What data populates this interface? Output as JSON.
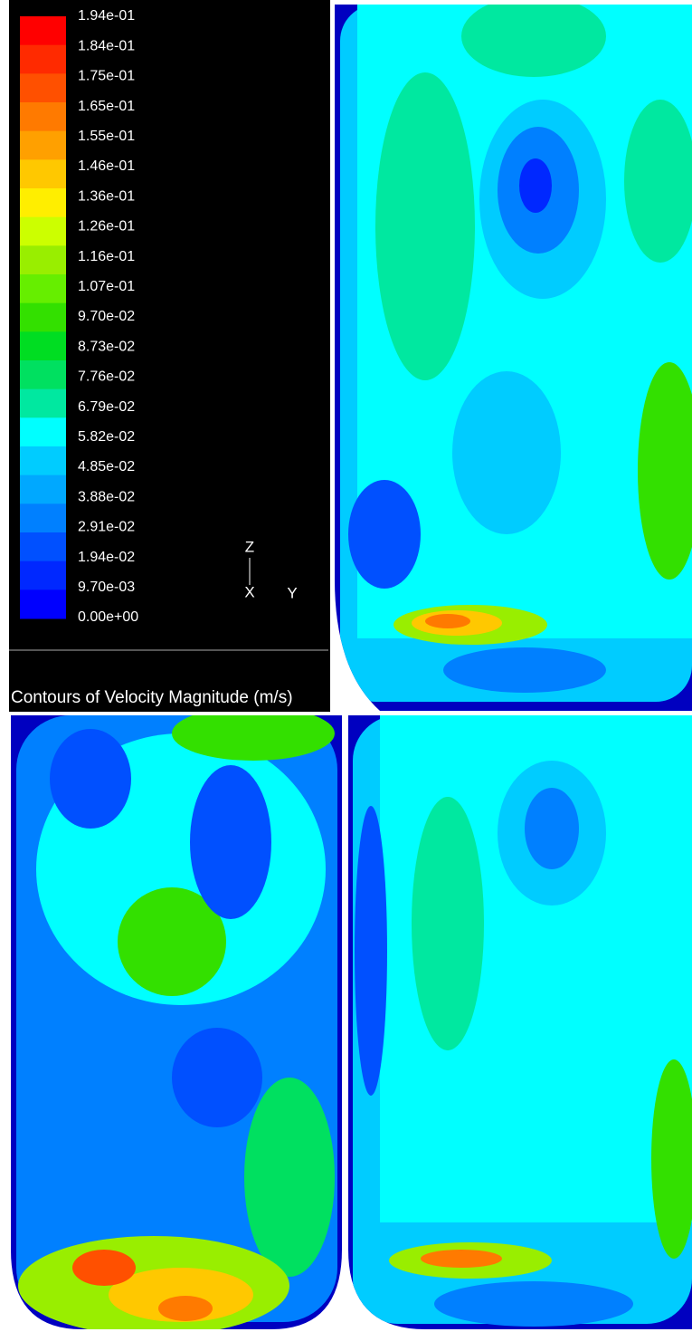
{
  "legend": {
    "levels": [
      "1.94e-01",
      "1.84e-01",
      "1.75e-01",
      "1.65e-01",
      "1.55e-01",
      "1.46e-01",
      "1.36e-01",
      "1.26e-01",
      "1.16e-01",
      "1.07e-01",
      "9.70e-02",
      "8.73e-02",
      "7.76e-02",
      "6.79e-02",
      "5.82e-02",
      "4.85e-02",
      "3.88e-02",
      "2.91e-02",
      "1.94e-02",
      "9.70e-03",
      "0.00e+00"
    ],
    "colors": [
      "#ff0000",
      "#ff2a00",
      "#ff5000",
      "#ff7a00",
      "#ffa000",
      "#ffc800",
      "#ffee00",
      "#ccff00",
      "#99ee00",
      "#66ee00",
      "#33e000",
      "#00dd22",
      "#00e060",
      "#00e8a0",
      "#00ffff",
      "#00ccff",
      "#00a8ff",
      "#0080ff",
      "#0050ff",
      "#0028ff",
      "#0000ff"
    ]
  },
  "axes": {
    "z": "Z",
    "x": "X",
    "y": "Y"
  },
  "title": "Contours of Velocity Magnitude (m/s)"
}
